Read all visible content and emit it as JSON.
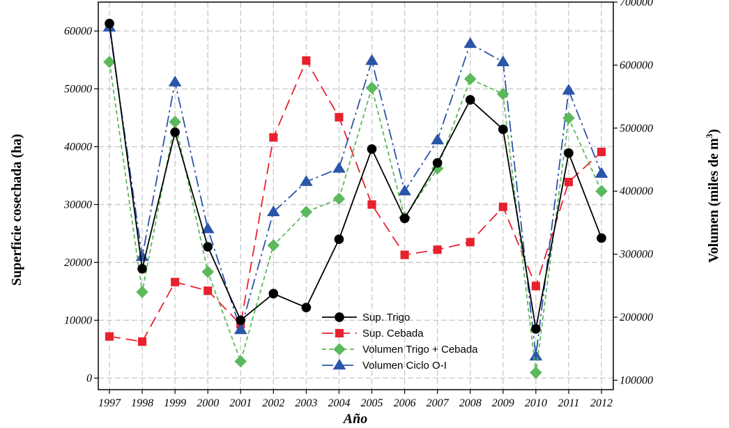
{
  "chart_data": {
    "type": "line",
    "xlabel": "Año",
    "ylabel_left": "Superficie cosechada (ha)",
    "ylabel_right_main": "Volumen  (miles de m",
    "ylabel_right_sup": "3",
    "ylabel_right_end": ")",
    "ylim_left": [
      -2000,
      65000
    ],
    "ylim_right": [
      85000,
      700000
    ],
    "yticks_left": [
      0,
      10000,
      20000,
      30000,
      40000,
      50000,
      60000
    ],
    "yticks_right": [
      100000,
      200000,
      300000,
      400000,
      500000,
      600000,
      700000
    ],
    "grid": true,
    "legend_position": "bottom-center",
    "x": [
      "1997",
      "1998",
      "1999",
      "2000",
      "2001",
      "2002",
      "2003",
      "2004",
      "2005",
      "2006",
      "2007",
      "2008",
      "2009",
      "2010",
      "2011",
      "2012"
    ],
    "series": [
      {
        "name": "Sup. Trigo",
        "axis": "left",
        "color": "#000000",
        "marker": "circle",
        "dash": "solid",
        "values": [
          61300,
          18900,
          42500,
          22700,
          10000,
          14600,
          12200,
          24000,
          39600,
          27600,
          37200,
          48100,
          43000,
          8500,
          38900,
          24200
        ]
      },
      {
        "name": "Sup. Cebada",
        "axis": "left",
        "color": "#e8212e",
        "marker": "square",
        "dash": "long",
        "values": [
          7200,
          6300,
          16600,
          15100,
          9300,
          41600,
          54900,
          45100,
          30000,
          21300,
          22200,
          23500,
          29600,
          15900,
          33900,
          39100
        ]
      },
      {
        "name": "Volumen  Trigo +  Cebada",
        "axis": "right",
        "color": "#5cb85c",
        "marker": "diamond",
        "dash": "short",
        "values": [
          605000,
          240000,
          510000,
          272000,
          130000,
          314000,
          367000,
          388000,
          564000,
          358000,
          436000,
          578000,
          554000,
          112000,
          516000,
          400000
        ]
      },
      {
        "name": "Volumen Ciclo O-I",
        "axis": "right",
        "color": "#2a55a8",
        "marker": "triangle",
        "dash": "dashdot",
        "values": [
          660000,
          296000,
          573000,
          340000,
          180000,
          367000,
          415000,
          436000,
          607000,
          400000,
          481000,
          634000,
          605000,
          138000,
          560000,
          428000
        ]
      }
    ]
  }
}
